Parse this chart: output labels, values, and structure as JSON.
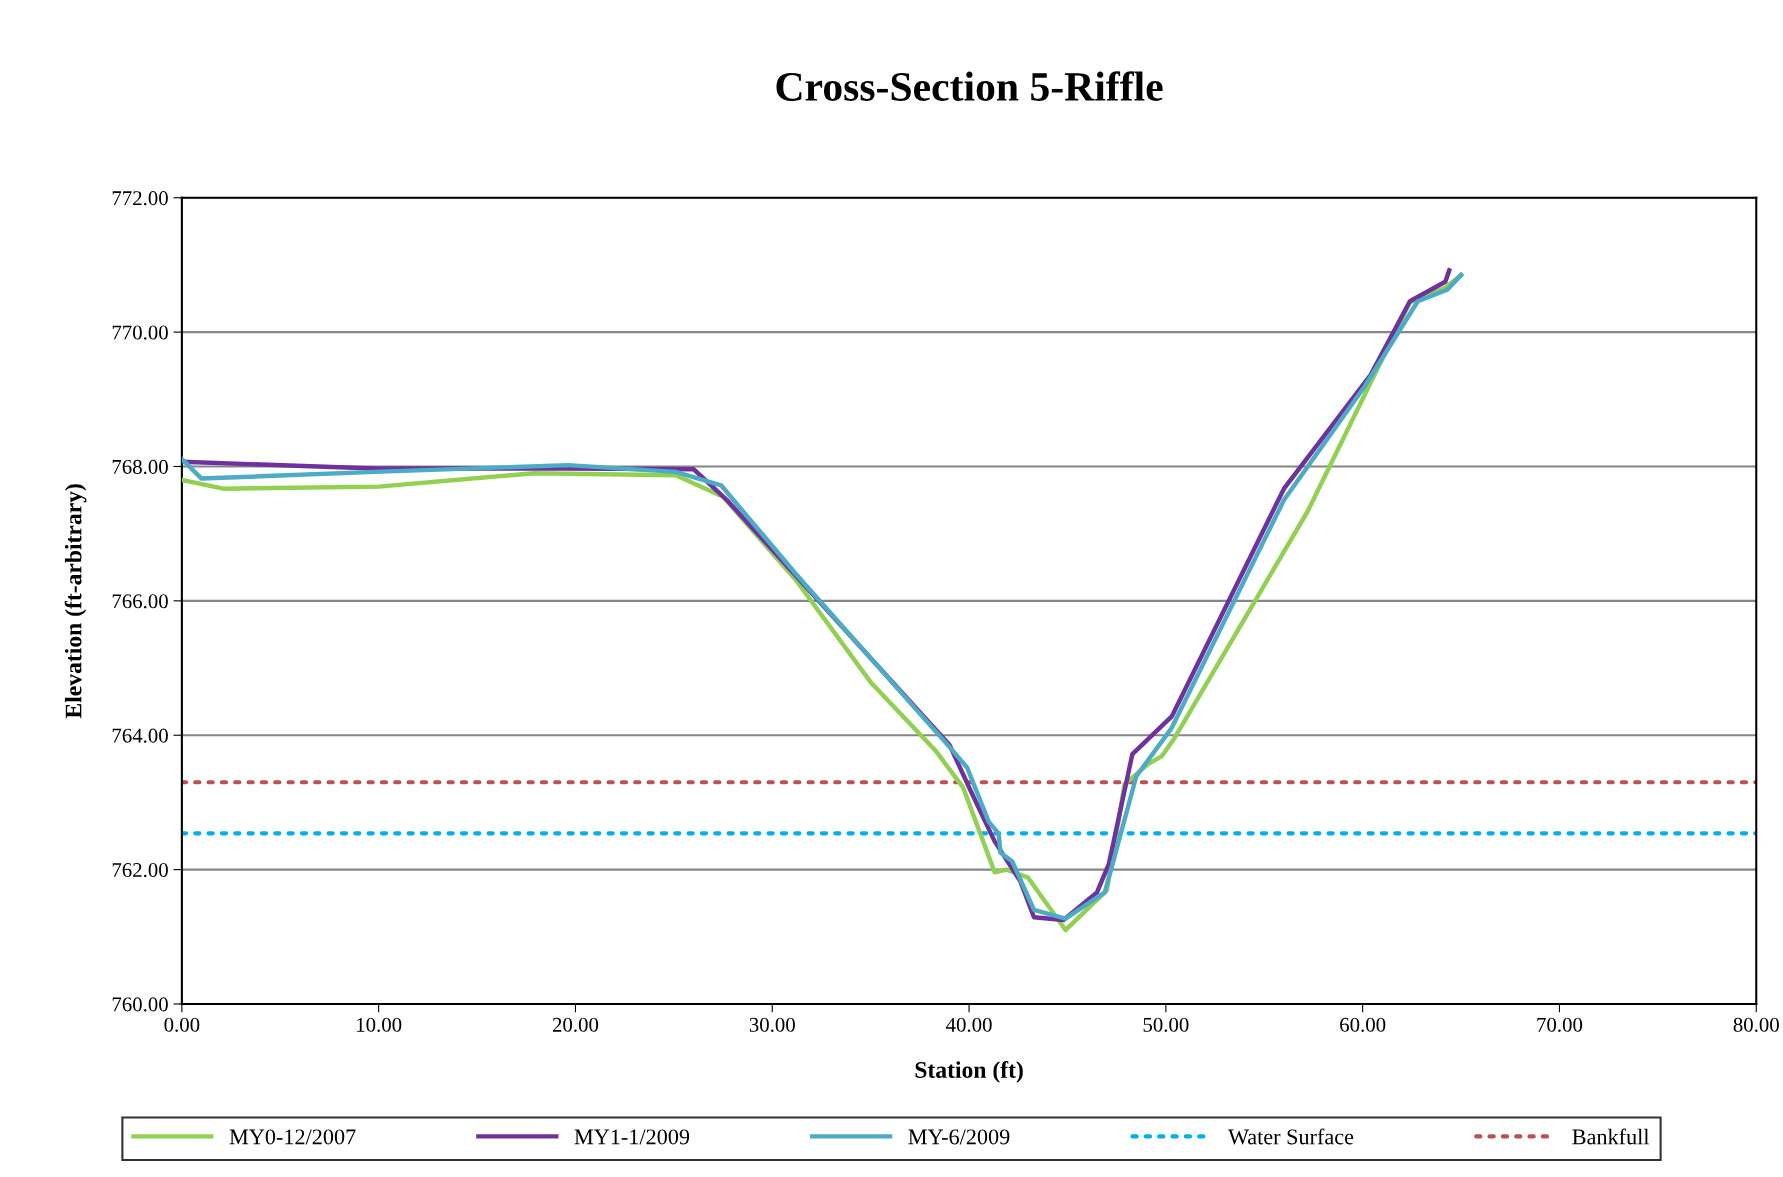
{
  "chart_data": {
    "type": "line",
    "title": "Cross-Section 5-Riffle",
    "xlabel": "Station (ft)",
    "ylabel": "Elevation (ft-arbitrary)",
    "xlim": [
      0,
      80
    ],
    "ylim": [
      760,
      772
    ],
    "xticks": [
      {
        "value": 0,
        "label": "0.00"
      },
      {
        "value": 10,
        "label": "10.00"
      },
      {
        "value": 20,
        "label": "20.00"
      },
      {
        "value": 30,
        "label": "30.00"
      },
      {
        "value": 40,
        "label": "40.00"
      },
      {
        "value": 50,
        "label": "50.00"
      },
      {
        "value": 60,
        "label": "60.00"
      },
      {
        "value": 70,
        "label": "70.00"
      },
      {
        "value": 80,
        "label": "80.00"
      }
    ],
    "yticks": [
      {
        "value": 760,
        "label": "760.00"
      },
      {
        "value": 762,
        "label": "762.00"
      },
      {
        "value": 764,
        "label": "764.00"
      },
      {
        "value": 766,
        "label": "766.00"
      },
      {
        "value": 768,
        "label": "768.00"
      },
      {
        "value": 770,
        "label": "770.00"
      },
      {
        "value": 772,
        "label": "772.00"
      }
    ],
    "grid": "y",
    "legend": "bottom",
    "marker": "none",
    "line_style": "solid",
    "series": [
      {
        "name": "MY0-12/2007",
        "color": "#92d050",
        "x": [
          0,
          2.1,
          10,
          17.9,
          25.1,
          27.5,
          31.2,
          35,
          38.3,
          39.7,
          41.3,
          41.9,
          43,
          44.9,
          47,
          47.9,
          49.1,
          49.8,
          50.4,
          57.2,
          62.4,
          64.2,
          65
        ],
        "values": [
          767.8,
          767.67,
          767.7,
          767.9,
          767.87,
          767.55,
          766.31,
          764.79,
          763.77,
          763.22,
          761.96,
          762.0,
          761.88,
          761.1,
          761.69,
          763.27,
          763.57,
          763.69,
          763.94,
          767.33,
          770.44,
          770.66,
          770.85
        ]
      },
      {
        "name": "MY1-1/2009",
        "color": "#7030a0",
        "x": [
          0,
          9.8,
          19.6,
          26,
          27.7,
          39,
          40.2,
          41.3,
          42.6,
          43.3,
          44.8,
          46.5,
          47.1,
          48.3,
          50.3,
          56.0,
          60.4,
          62.4,
          64.2,
          64.4
        ],
        "values": [
          768.07,
          767.97,
          767.97,
          767.96,
          767.5,
          763.86,
          763.1,
          762.42,
          761.83,
          761.29,
          761.25,
          761.66,
          762.08,
          763.72,
          764.28,
          767.67,
          769.36,
          770.46,
          770.75,
          770.92
        ]
      },
      {
        "name": "MY-6/2009",
        "color": "#4bacc6",
        "x": [
          0,
          1.0,
          9.8,
          19.6,
          25.1,
          27.4,
          31.2,
          38.9,
          39.9,
          41.0,
          41.5,
          41.6,
          42.2,
          43.3,
          44.9,
          46.9,
          48.5,
          50.3,
          56.0,
          60.1,
          62.8,
          64.3,
          65
        ],
        "values": [
          768.11,
          767.82,
          767.92,
          768.02,
          767.92,
          767.72,
          766.4,
          763.86,
          763.52,
          762.71,
          762.54,
          762.25,
          762.12,
          761.4,
          761.27,
          761.66,
          763.39,
          764.11,
          767.5,
          769.19,
          770.46,
          770.63,
          770.85
        ]
      }
    ],
    "ref_lines": [
      {
        "axis": "y",
        "value": 762.54,
        "label": "Water Surface",
        "color": "#00b0f0",
        "line_style": "dotted"
      },
      {
        "axis": "y",
        "value": 763.3,
        "label": "Bankfull",
        "color": "#c0504d",
        "line_style": "dotted"
      }
    ]
  }
}
